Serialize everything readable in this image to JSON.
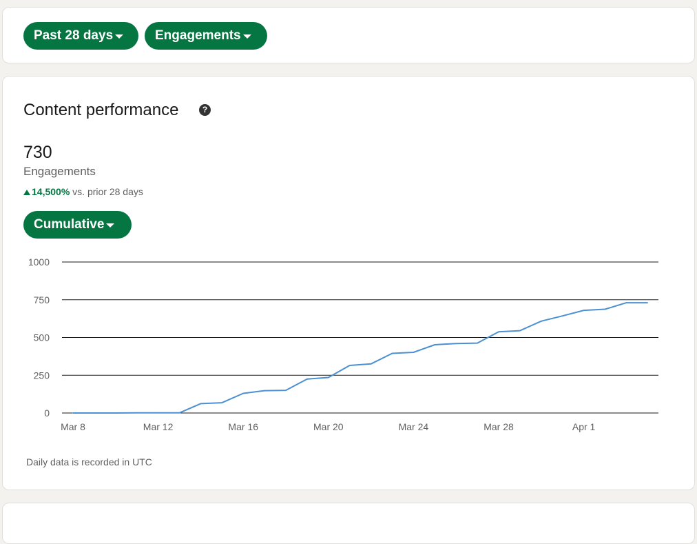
{
  "filters": {
    "range_label": "Past 28 days",
    "metric_label": "Engagements"
  },
  "performance": {
    "title": "Content performance",
    "help_icon": "question-circle-icon",
    "total": "730",
    "metric": "Engagements",
    "change_value": "14,500%",
    "change_text": "vs. prior 28 days",
    "mode_label": "Cumulative",
    "footnote": "Daily data is recorded in UTC"
  },
  "colors": {
    "accent": "#057642",
    "line": "#4a90d2"
  },
  "chart_data": {
    "type": "line",
    "title": "",
    "xlabel": "",
    "ylabel": "",
    "ylim": [
      0,
      1000
    ],
    "yticks": [
      0,
      250,
      500,
      750,
      1000
    ],
    "x_tick_labels": [
      "Mar 8",
      "Mar 12",
      "Mar 16",
      "Mar 20",
      "Mar 24",
      "Mar 28",
      "Apr 1"
    ],
    "grid": true,
    "x": [
      "Mar 8",
      "Mar 9",
      "Mar 10",
      "Mar 11",
      "Mar 12",
      "Mar 13",
      "Mar 14",
      "Mar 15",
      "Mar 16",
      "Mar 17",
      "Mar 18",
      "Mar 19",
      "Mar 20",
      "Mar 21",
      "Mar 22",
      "Mar 23",
      "Mar 24",
      "Mar 25",
      "Mar 26",
      "Mar 27",
      "Mar 28",
      "Mar 29",
      "Mar 30",
      "Mar 31",
      "Apr 1",
      "Apr 2",
      "Apr 3",
      "Apr 4"
    ],
    "series": [
      {
        "values": [
          0,
          0,
          0,
          1,
          1,
          1,
          62,
          68,
          130,
          148,
          150,
          225,
          235,
          315,
          325,
          395,
          402,
          452,
          460,
          463,
          538,
          545,
          608,
          643,
          680,
          687,
          730,
          730
        ]
      }
    ]
  }
}
